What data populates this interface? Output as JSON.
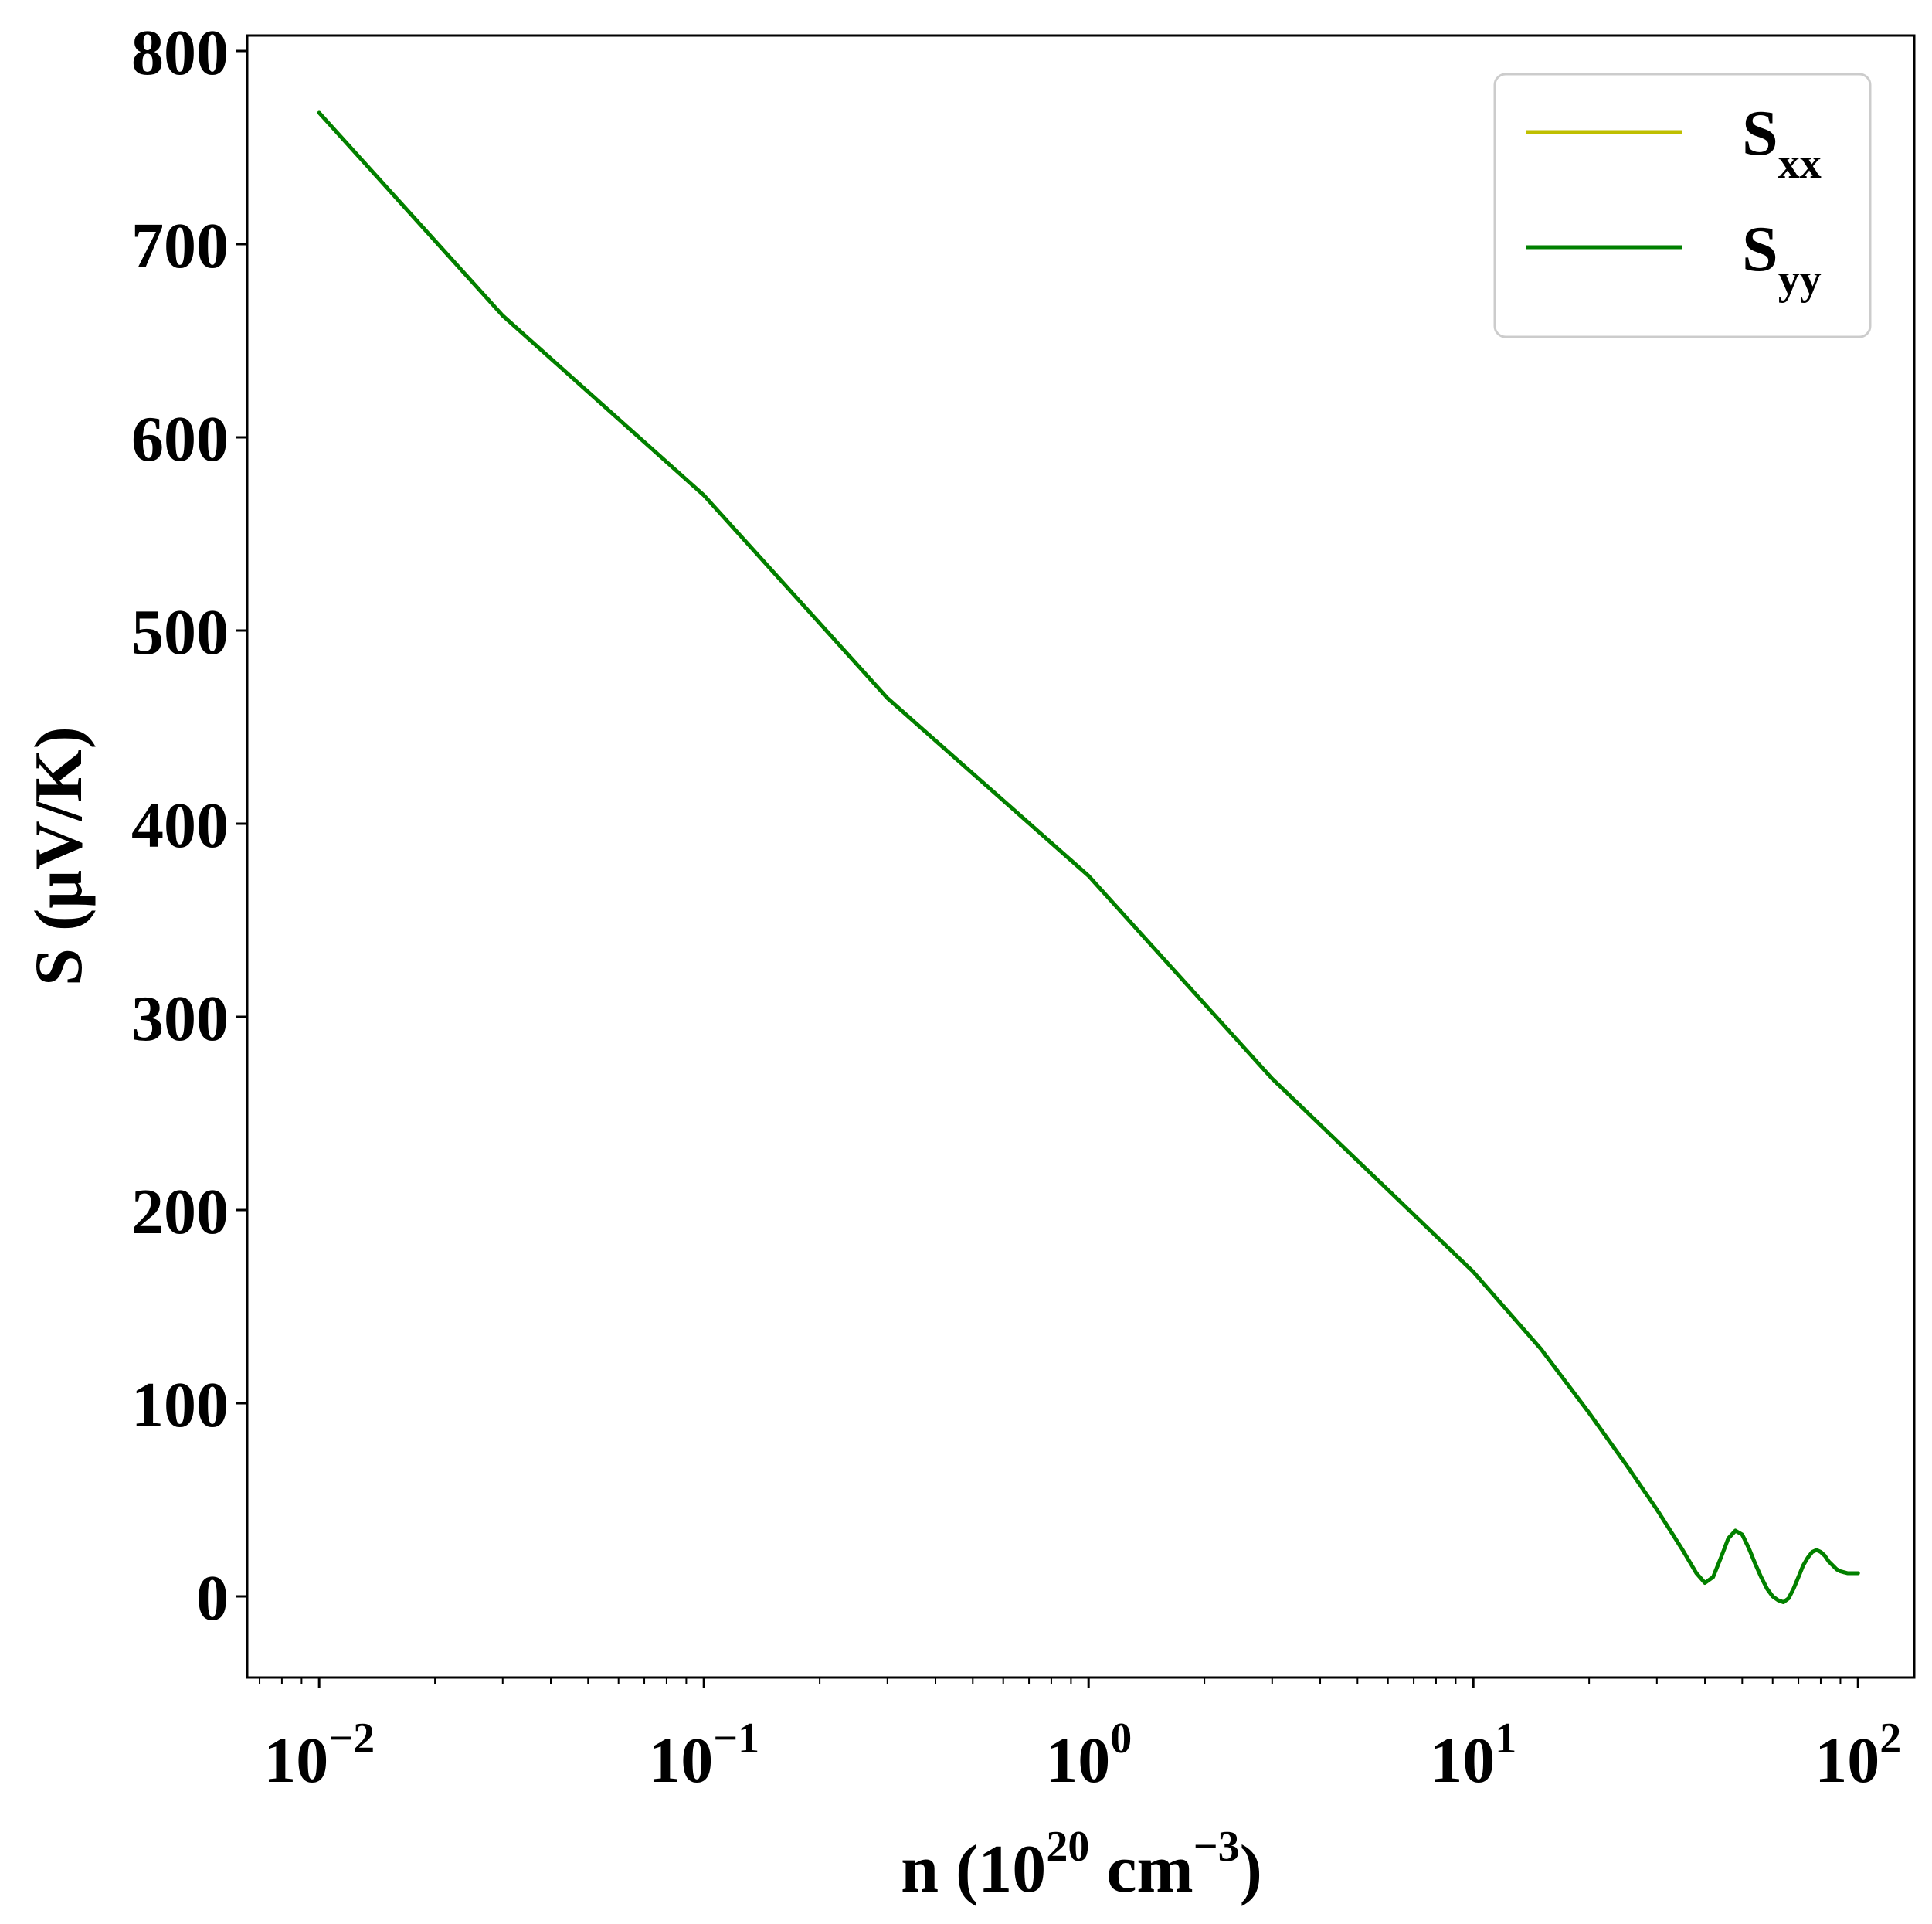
{
  "chart_data": {
    "type": "line",
    "title": "",
    "xlabel": {
      "text_parts": [
        "n (10",
        "20",
        " cm",
        "−3",
        ")"
      ]
    },
    "ylabel": "S (μV/K)",
    "xscale": "log",
    "xlim": [
      0.0065,
      140
    ],
    "ylim": [
      -42,
      808
    ],
    "x_ticks": [
      {
        "value": 0.01,
        "base": "10",
        "exp": "−2"
      },
      {
        "value": 0.1,
        "base": "10",
        "exp": "−1"
      },
      {
        "value": 1,
        "base": "10",
        "exp": "0"
      },
      {
        "value": 10,
        "base": "10",
        "exp": "1"
      },
      {
        "value": 100,
        "base": "10",
        "exp": "2"
      }
    ],
    "y_ticks": [
      0,
      100,
      200,
      300,
      400,
      500,
      600,
      700,
      800
    ],
    "grid": false,
    "legend": {
      "placement": "top-right",
      "entries": [
        {
          "base": "S",
          "sub": "xx",
          "color": "#bfbf00"
        },
        {
          "base": "S",
          "sub": "yy",
          "color": "#008000"
        }
      ]
    },
    "series": [
      {
        "name": "Sxx",
        "color": "#bfbf00",
        "x": [
          0.01,
          0.03,
          0.1,
          0.3,
          1,
          3,
          10,
          15,
          20,
          25,
          30,
          35,
          38,
          40,
          42,
          44,
          46,
          48,
          50,
          52,
          54,
          56,
          58,
          60,
          62,
          64,
          66,
          68,
          70,
          72,
          74,
          76,
          78,
          80,
          82,
          84,
          86,
          88,
          90,
          92,
          94,
          96,
          100
        ],
        "y": [
          768,
          663,
          570,
          465,
          373,
          268,
          168,
          128,
          95,
          68,
          45,
          24,
          12,
          7,
          10,
          20,
          30,
          34,
          32,
          25,
          17,
          10,
          4,
          0,
          -2,
          -3,
          -1,
          4,
          10,
          16,
          20,
          23,
          24,
          23,
          21,
          18,
          16,
          14,
          13,
          12.5,
          12,
          12,
          12
        ]
      },
      {
        "name": "Syy",
        "color": "#008000",
        "x": [
          0.01,
          0.03,
          0.1,
          0.3,
          1,
          3,
          10,
          15,
          20,
          25,
          30,
          35,
          38,
          40,
          42,
          44,
          46,
          48,
          50,
          52,
          54,
          56,
          58,
          60,
          62,
          64,
          66,
          68,
          70,
          72,
          74,
          76,
          78,
          80,
          82,
          84,
          86,
          88,
          90,
          92,
          94,
          96,
          100
        ],
        "y": [
          768,
          663,
          570,
          465,
          373,
          268,
          168,
          128,
          95,
          68,
          45,
          24,
          12,
          7,
          10,
          20,
          30,
          34,
          32,
          25,
          17,
          10,
          4,
          0,
          -2,
          -3,
          -1,
          4,
          10,
          16,
          20,
          23,
          24,
          23,
          21,
          18,
          16,
          14,
          13,
          12.5,
          12,
          12,
          12
        ]
      }
    ]
  }
}
